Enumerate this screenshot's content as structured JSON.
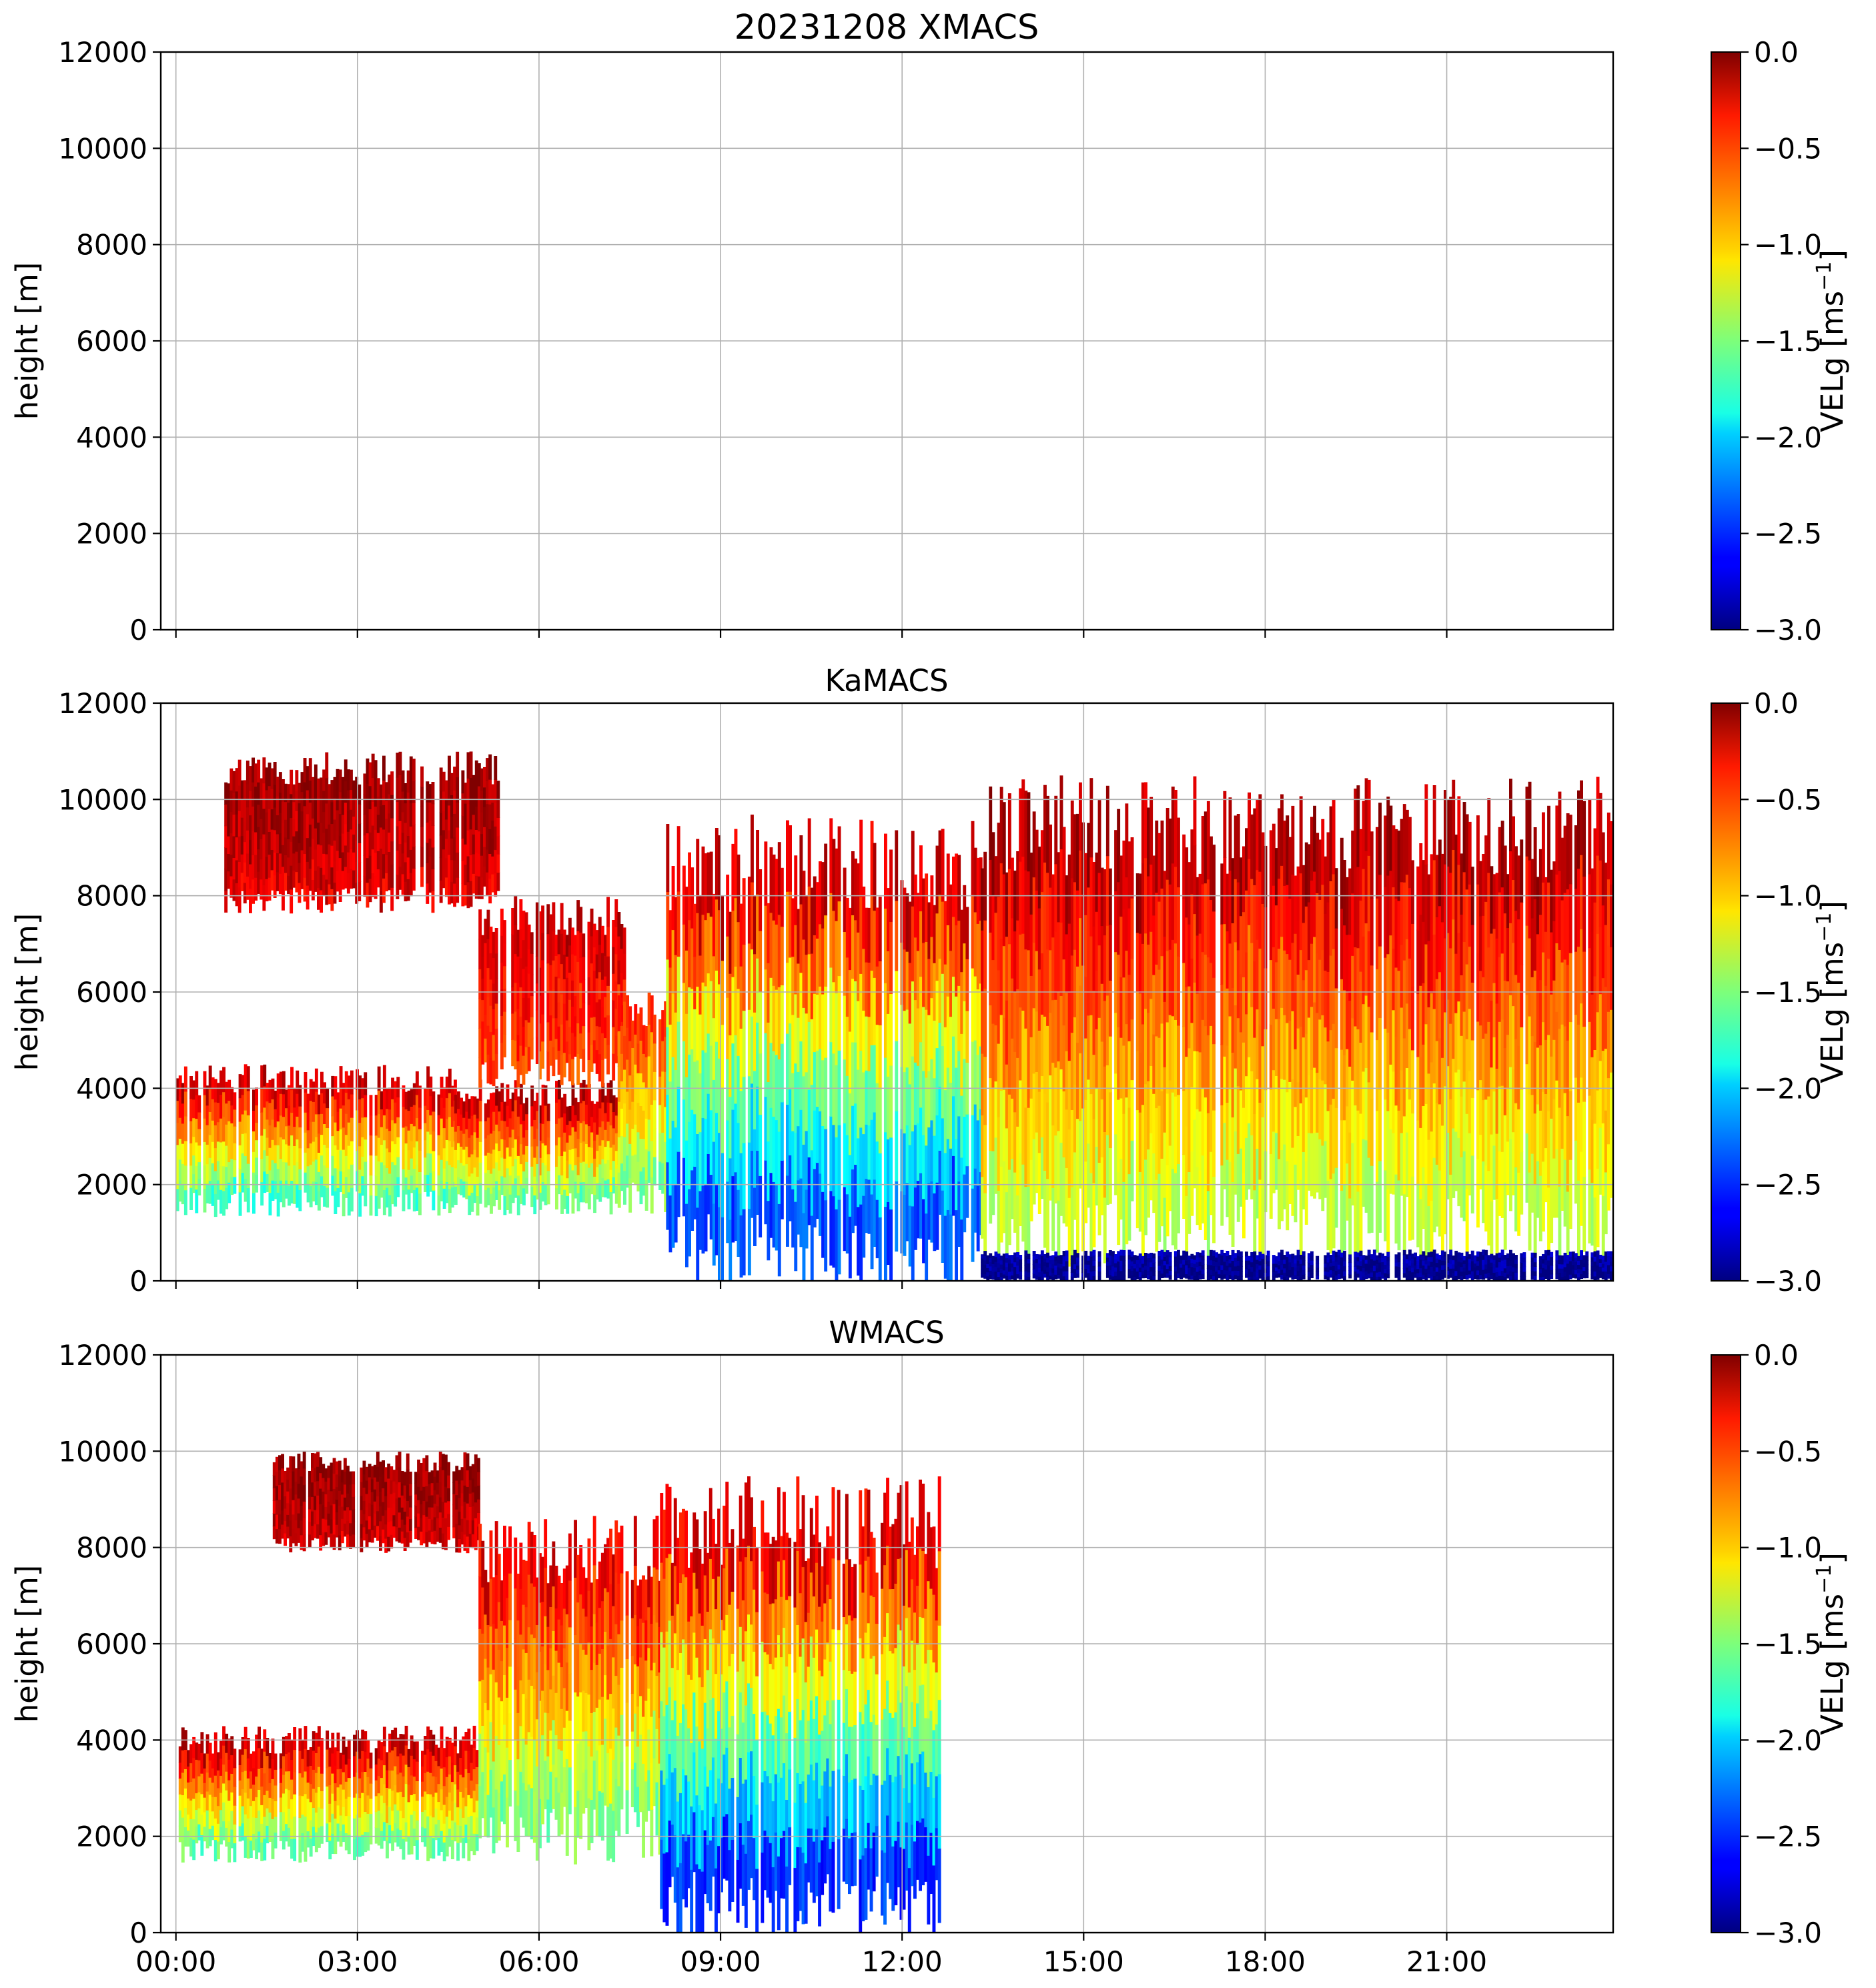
{
  "chart_data": [
    {
      "type": "heatmap",
      "title": "20231208 XMACS",
      "xlabel": "",
      "ylabel": "height [m]",
      "ylim": [
        0,
        12000
      ],
      "xlim_hours": [
        -0.25,
        23.75
      ],
      "yticks": [
        "0",
        "2000",
        "4000",
        "6000",
        "8000",
        "10000",
        "12000"
      ],
      "xticks": [
        "00:00",
        "03:00",
        "06:00",
        "09:00",
        "12:00",
        "15:00",
        "18:00",
        "21:00"
      ],
      "x_tick_labels_shown": false,
      "grid": true,
      "colorbar": {
        "label": "VELg [ms",
        "label_exponent": "−1",
        "label_close": "]",
        "range": [
          -3.0,
          0.0
        ],
        "ticks": [
          "0.0",
          "−0.5",
          "−1.0",
          "−1.5",
          "−2.0",
          "−2.5",
          "−3.0"
        ],
        "colormap": "jet"
      },
      "data_present": false,
      "echo_regions": []
    },
    {
      "type": "heatmap",
      "title": "KaMACS",
      "xlabel": "",
      "ylabel": "height [m]",
      "ylim": [
        0,
        12000
      ],
      "xlim_hours": [
        -0.25,
        23.75
      ],
      "yticks": [
        "0",
        "2000",
        "4000",
        "6000",
        "8000",
        "10000",
        "12000"
      ],
      "xticks": [
        "00:00",
        "03:00",
        "06:00",
        "09:00",
        "12:00",
        "15:00",
        "18:00",
        "21:00"
      ],
      "x_tick_labels_shown": false,
      "grid": true,
      "colorbar": {
        "label": "VELg [ms",
        "label_exponent": "−1",
        "label_close": "]",
        "range": [
          -3.0,
          0.0
        ],
        "ticks": [
          "0.0",
          "−0.5",
          "−1.0",
          "−1.5",
          "−2.0",
          "−2.5",
          "−3.0"
        ],
        "colormap": "jet"
      },
      "data_present": true,
      "echo_regions": [
        {
          "name": "cirrus-01-03h",
          "t_start": 0.8,
          "t_end": 5.3,
          "h_bottom": 7800,
          "h_top": 11000,
          "vel_top": -0.05,
          "vel_bottom": -0.3
        },
        {
          "name": "low-layer-00-04h",
          "t_start": 0.0,
          "t_end": 4.6,
          "h_bottom": 1500,
          "h_top": 4500,
          "vel_top": -0.1,
          "vel_bottom": -1.8
        },
        {
          "name": "mid-layer-04-07h",
          "t_start": 4.6,
          "t_end": 7.3,
          "h_bottom": 1500,
          "h_top": 4200,
          "vel_top": -0.05,
          "vel_bottom": -1.7
        },
        {
          "name": "fallstreak-05-07h",
          "t_start": 5.0,
          "t_end": 7.4,
          "h_bottom": 4200,
          "h_top": 8000,
          "vel_top": -0.2,
          "vel_bottom": -0.6
        },
        {
          "name": "precip-07-08h",
          "t_start": 7.3,
          "t_end": 8.1,
          "h_bottom": 1600,
          "h_top": 6200,
          "vel_top": -0.4,
          "vel_bottom": -1.6
        },
        {
          "name": "column-08-13h",
          "t_start": 8.1,
          "t_end": 13.3,
          "h_bottom": 200,
          "h_top": 9700,
          "vel_top": -0.05,
          "vel_bottom": -2.6
        },
        {
          "name": "deep-13-24h",
          "t_start": 13.3,
          "t_end": 23.75,
          "h_bottom": 700,
          "h_top": 10500,
          "vel_top": -0.05,
          "vel_bottom": -1.4
        },
        {
          "name": "rain-layer-13-24h",
          "t_start": 13.3,
          "t_end": 23.75,
          "h_bottom": 0,
          "h_top": 650,
          "vel_top": -2.9,
          "vel_bottom": -3.0
        }
      ]
    },
    {
      "type": "heatmap",
      "title": "WMACS",
      "xlabel": "",
      "ylabel": "height [m]",
      "ylim": [
        0,
        12000
      ],
      "xlim_hours": [
        -0.25,
        23.75
      ],
      "yticks": [
        "0",
        "2000",
        "4000",
        "6000",
        "8000",
        "10000",
        "12000"
      ],
      "xticks": [
        "00:00",
        "03:00",
        "06:00",
        "09:00",
        "12:00",
        "15:00",
        "18:00",
        "21:00"
      ],
      "x_tick_labels_shown": true,
      "grid": true,
      "colorbar": {
        "label": "VELg [ms",
        "label_exponent": "−1",
        "label_close": "]",
        "range": [
          -3.0,
          0.0
        ],
        "ticks": [
          "0.0",
          "−0.5",
          "−1.0",
          "−1.5",
          "−2.0",
          "−2.5",
          "−3.0"
        ],
        "colormap": "jet"
      },
      "data_present": true,
      "echo_regions": [
        {
          "name": "low-bars-00-05h",
          "t_start": 0.0,
          "t_end": 5.0,
          "h_bottom": 1600,
          "h_top": 4300,
          "vel_top": -0.1,
          "vel_bottom": -1.7
        },
        {
          "name": "upper-bars-01-05h",
          "t_start": 1.6,
          "t_end": 5.0,
          "h_bottom": 8000,
          "h_top": 10000,
          "vel_top": -0.05,
          "vel_bottom": -0.25
        },
        {
          "name": "bars-05-08h",
          "t_start": 5.0,
          "t_end": 8.0,
          "h_bottom": 1800,
          "h_top": 8700,
          "vel_top": -0.2,
          "vel_bottom": -1.6
        },
        {
          "name": "bars-08-12h",
          "t_start": 8.0,
          "t_end": 12.6,
          "h_bottom": 100,
          "h_top": 9500,
          "vel_top": -0.1,
          "vel_bottom": -2.7
        }
      ]
    }
  ]
}
